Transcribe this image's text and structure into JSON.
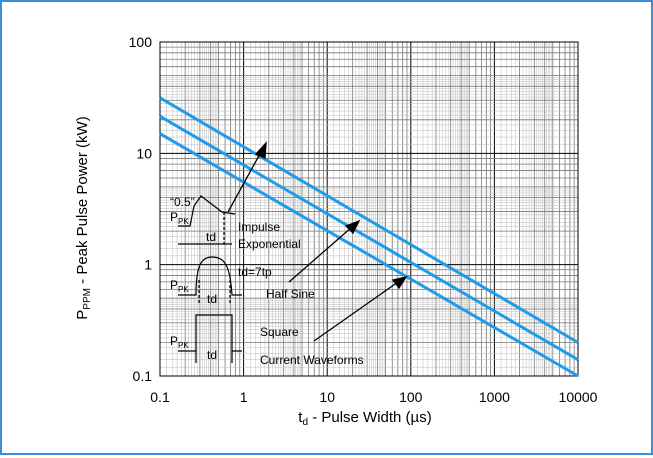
{
  "chart_data": {
    "type": "line",
    "title": "",
    "xlabel": {
      "main": "t",
      "sub": "d",
      "rest": " - Pulse Width (µs)"
    },
    "ylabel": {
      "main": "P",
      "sub": "PPM",
      "rest": " - Peak Pulse Power (kW)"
    },
    "x_scale": "log",
    "y_scale": "log",
    "xlim": [
      0.1,
      10000
    ],
    "ylim": [
      0.1,
      100
    ],
    "x_ticks": [
      "0.1",
      "1",
      "10",
      "100",
      "1000",
      "10000"
    ],
    "y_ticks": [
      "0.1",
      "1",
      "10",
      "100"
    ],
    "grid": true,
    "series_color": "#1f9bea",
    "series": [
      {
        "name": "Impulse Exponential",
        "x": [
          0.1,
          10000
        ],
        "y": [
          31.5,
          0.2
        ]
      },
      {
        "name": "Half Sine",
        "x": [
          0.1,
          10000
        ],
        "y": [
          21.5,
          0.14
        ]
      },
      {
        "name": "Square",
        "x": [
          0.1,
          10000
        ],
        "y": [
          15,
          0.1
        ]
      }
    ],
    "annotations": {
      "half_label": "“0.5”",
      "ppk_main": "P",
      "ppk_sub": "PK",
      "td": "td",
      "impulse_line1": "Impulse",
      "impulse_line2": "Exponential",
      "td_eq": "td=7tp",
      "half_sine": "Half Sine",
      "square": "Square",
      "current_waveforms": "Current Waveforms"
    }
  }
}
